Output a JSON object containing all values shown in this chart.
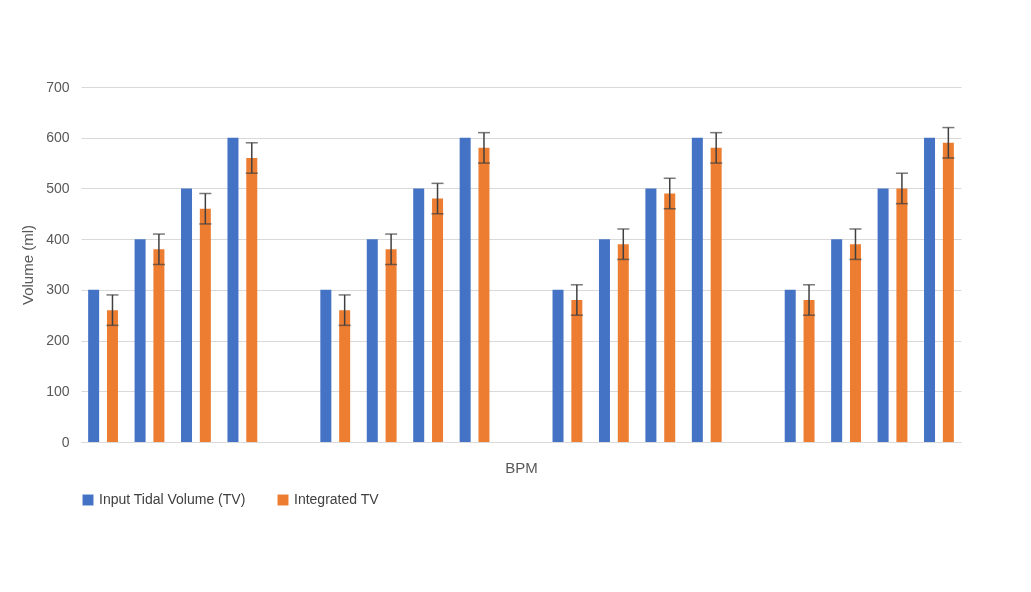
{
  "chart_data": {
    "type": "bar",
    "xlabel": "BPM",
    "ylabel": "Volume (ml)",
    "categories": [
      null,
      null,
      null,
      null,
      null,
      null,
      null,
      null,
      null,
      null,
      null,
      null,
      null,
      null,
      null,
      null,
      null,
      null,
      null
    ],
    "series": [
      {
        "name": "Input Tidal Volume (TV)",
        "color": "#4472c4",
        "values": [
          300,
          400,
          500,
          600,
          null,
          300,
          400,
          500,
          600,
          null,
          300,
          400,
          500,
          600,
          null,
          300,
          400,
          500,
          600
        ]
      },
      {
        "name": "Integrated TV",
        "color": "#ed7d31",
        "values": [
          260,
          380,
          460,
          560,
          null,
          260,
          380,
          480,
          580,
          null,
          280,
          390,
          490,
          580,
          null,
          280,
          390,
          500,
          590
        ],
        "errors": [
          30,
          30,
          30,
          30,
          null,
          30,
          30,
          30,
          30,
          null,
          30,
          30,
          30,
          30,
          null,
          30,
          30,
          30,
          30
        ]
      }
    ],
    "ylim": [
      0,
      700
    ],
    "yticks": [
      0,
      100,
      200,
      300,
      400,
      500,
      600,
      700
    ],
    "grid": "y",
    "legend": "bottom",
    "tick_labels": "y"
  }
}
